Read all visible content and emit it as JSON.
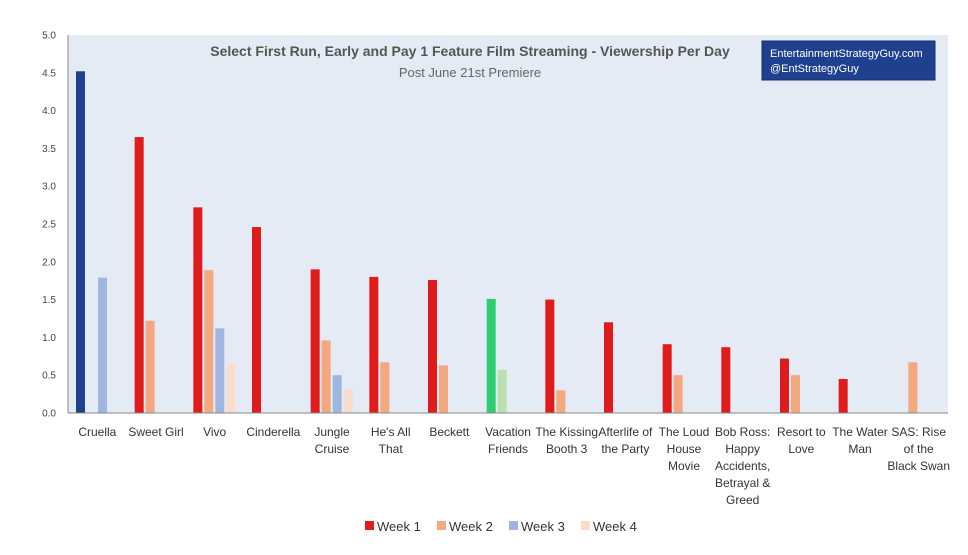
{
  "chart_data": {
    "type": "bar",
    "title": "Select First Run, Early and Pay 1 Feature Film Streaming - Viewership Per Day",
    "subtitle": "Post June 21st Premiere",
    "credit_lines": [
      "EntertainmentStrategyGuy.com",
      "@EntStrategyGuy"
    ],
    "ylim": [
      0,
      5
    ],
    "yticks": [
      "0.0",
      "0.5",
      "1.0",
      "1.5",
      "2.0",
      "2.5",
      "3.0",
      "3.5",
      "4.0",
      "4.5",
      "5.0"
    ],
    "grid": false,
    "legend_position": "bottom",
    "categories": [
      [
        "Cruella"
      ],
      [
        "Sweet Girl"
      ],
      [
        "Vivo"
      ],
      [
        "Cinderella"
      ],
      [
        "Jungle",
        "Cruise"
      ],
      [
        "He's All",
        "That"
      ],
      [
        "Beckett"
      ],
      [
        "Vacation",
        "Friends"
      ],
      [
        "The Kissing",
        "Booth 3"
      ],
      [
        "Afterlife of",
        "the Party"
      ],
      [
        "The Loud",
        "House",
        "Movie"
      ],
      [
        "Bob Ross:",
        "Happy",
        "Accidents,",
        "Betrayal &",
        "Greed"
      ],
      [
        "Resort to",
        "Love"
      ],
      [
        "The Water",
        "Man"
      ],
      [
        "SAS: Rise",
        "of the",
        "Black Swan"
      ]
    ],
    "series": [
      {
        "name": "Week 1",
        "color": "#e01b1b",
        "values": [
          4.52,
          3.65,
          2.72,
          2.46,
          1.9,
          1.8,
          1.76,
          1.51,
          1.5,
          1.2,
          0.91,
          0.87,
          0.72,
          0.45,
          null
        ]
      },
      {
        "name": "Week 2",
        "color": "#f4a880",
        "values": [
          null,
          1.22,
          1.89,
          null,
          0.96,
          0.67,
          0.63,
          0.57,
          0.3,
          null,
          0.5,
          null,
          0.5,
          null,
          0.67
        ]
      },
      {
        "name": "Week 3",
        "color": "#9fb6e0",
        "values": [
          1.79,
          null,
          1.12,
          null,
          0.5,
          null,
          null,
          null,
          null,
          null,
          null,
          null,
          null,
          null,
          null
        ]
      },
      {
        "name": "Week 4",
        "color": "#f9dccb",
        "values": [
          null,
          null,
          0.66,
          null,
          0.31,
          null,
          null,
          null,
          null,
          null,
          null,
          null,
          null,
          null,
          null
        ]
      }
    ],
    "bar_color_overrides": [
      {
        "category": 0,
        "series": 0,
        "color": "#1f3f8f"
      },
      {
        "category": 7,
        "series": 0,
        "color": "#2ecc71"
      },
      {
        "category": 7,
        "series": 1,
        "color": "#b8e0b0"
      }
    ],
    "colors": {
      "plot_background": "#e4ebf4",
      "credit_box": "#1f3f8f",
      "axis": "#888888"
    }
  }
}
